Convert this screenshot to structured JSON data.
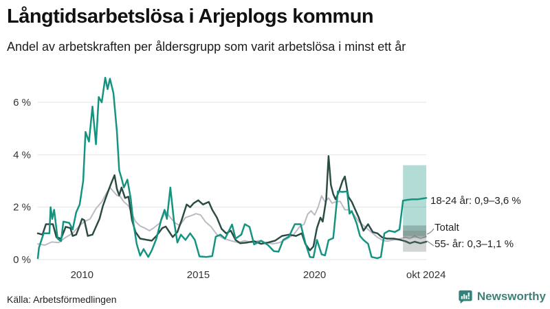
{
  "header": {
    "title": "Långtidsarbetslösa i Arjeplogs kommun",
    "subtitle": "Andel av arbetskraften per åldersgrupp som varit arbetslösa i minst ett år"
  },
  "footer": {
    "source": "Källa: Arbetsförmedlingen",
    "brand": "Newsworthy"
  },
  "colors": {
    "accent_teal": "#149380",
    "dark_series": "#2b4c44",
    "gray_series": "#bdb9c4",
    "gridline": "#e2e2e2",
    "tick_text": "#333333",
    "brand_teal": "#2e837a"
  },
  "chart_data": {
    "type": "line",
    "title": "Långtidsarbetslösa i Arjeplogs kommun",
    "subtitle": "Andel av arbetskraften per åldersgrupp som varit arbetslösa i minst ett år",
    "unit": "%",
    "grid": true,
    "legend_position": "right-annotations",
    "x_axis": {
      "range": [
        2008.1,
        2024.8
      ],
      "ticks": [
        {
          "label": "2010",
          "year": 2010
        },
        {
          "label": "2015",
          "year": 2015
        },
        {
          "label": "2020",
          "year": 2020
        },
        {
          "label": "okt 2024",
          "year": 2024.79
        }
      ]
    },
    "y_axis": {
      "range": [
        0,
        7
      ],
      "ticks": [
        {
          "label": "0 %",
          "value": 0
        },
        {
          "label": "2 %",
          "value": 2
        },
        {
          "label": "4 %",
          "value": 4
        },
        {
          "label": "6 %",
          "value": 6
        }
      ]
    },
    "series": [
      {
        "name": "Totalt",
        "color": "#bdb9c4",
        "stroke_width": 2,
        "points": [
          [
            2008.1,
            0.6
          ],
          [
            2008.4,
            0.55
          ],
          [
            2008.7,
            0.67
          ],
          [
            2009.0,
            0.65
          ],
          [
            2009.3,
            0.85
          ],
          [
            2009.6,
            1.0
          ],
          [
            2009.9,
            1.3
          ],
          [
            2010.1,
            1.45
          ],
          [
            2010.35,
            1.55
          ],
          [
            2010.6,
            1.95
          ],
          [
            2010.85,
            2.2
          ],
          [
            2011.0,
            2.45
          ],
          [
            2011.2,
            2.75
          ],
          [
            2011.35,
            2.6
          ],
          [
            2011.5,
            2.45
          ],
          [
            2011.65,
            2.4
          ],
          [
            2011.8,
            2.2
          ],
          [
            2012.0,
            2.05
          ],
          [
            2012.15,
            1.75
          ],
          [
            2012.3,
            1.45
          ],
          [
            2012.5,
            1.28
          ],
          [
            2012.7,
            1.2
          ],
          [
            2012.9,
            1.1
          ],
          [
            2013.1,
            1.22
          ],
          [
            2013.35,
            1.4
          ],
          [
            2013.6,
            1.83
          ],
          [
            2013.8,
            1.6
          ],
          [
            2014.0,
            1.4
          ],
          [
            2014.2,
            1.3
          ],
          [
            2014.45,
            1.6
          ],
          [
            2014.7,
            1.68
          ],
          [
            2014.9,
            1.75
          ],
          [
            2015.1,
            1.7
          ],
          [
            2015.3,
            1.45
          ],
          [
            2015.55,
            1.25
          ],
          [
            2015.8,
            0.95
          ],
          [
            2016.1,
            0.8
          ],
          [
            2016.4,
            0.72
          ],
          [
            2016.7,
            0.65
          ],
          [
            2017.0,
            0.72
          ],
          [
            2017.3,
            0.65
          ],
          [
            2017.6,
            0.72
          ],
          [
            2017.9,
            0.65
          ],
          [
            2018.2,
            0.6
          ],
          [
            2018.5,
            0.65
          ],
          [
            2018.8,
            0.78
          ],
          [
            2019.1,
            0.95
          ],
          [
            2019.35,
            1.25
          ],
          [
            2019.55,
            1.35
          ],
          [
            2019.7,
            1.73
          ],
          [
            2019.85,
            1.86
          ],
          [
            2020.0,
            1.7
          ],
          [
            2020.15,
            2.0
          ],
          [
            2020.3,
            2.43
          ],
          [
            2020.45,
            2.2
          ],
          [
            2020.6,
            2.35
          ],
          [
            2020.75,
            2.15
          ],
          [
            2020.9,
            2.2
          ],
          [
            2021.1,
            2.22
          ],
          [
            2021.3,
            1.9
          ],
          [
            2021.5,
            1.9
          ],
          [
            2021.7,
            1.7
          ],
          [
            2021.9,
            1.45
          ],
          [
            2022.1,
            1.3
          ],
          [
            2022.3,
            1.15
          ],
          [
            2022.5,
            1.0
          ],
          [
            2022.7,
            0.85
          ],
          [
            2022.9,
            0.75
          ],
          [
            2023.1,
            0.7
          ],
          [
            2023.4,
            0.75
          ],
          [
            2023.7,
            0.8
          ],
          [
            2023.9,
            0.85
          ],
          [
            2024.1,
            0.8
          ],
          [
            2024.3,
            0.9
          ],
          [
            2024.55,
            0.8
          ],
          [
            2024.8,
            0.88
          ]
        ]
      },
      {
        "name": "55- år",
        "color": "#2b4c44",
        "stroke_width": 2.5,
        "points": [
          [
            2008.1,
            1.0
          ],
          [
            2008.3,
            0.95
          ],
          [
            2008.45,
            1.35
          ],
          [
            2008.75,
            1.35
          ],
          [
            2008.9,
            0.85
          ],
          [
            2009.1,
            0.8
          ],
          [
            2009.3,
            1.25
          ],
          [
            2009.5,
            1.2
          ],
          [
            2009.6,
            0.9
          ],
          [
            2009.75,
            0.95
          ],
          [
            2009.9,
            1.3
          ],
          [
            2010.0,
            1.55
          ],
          [
            2010.1,
            1.5
          ],
          [
            2010.25,
            0.9
          ],
          [
            2010.45,
            0.95
          ],
          [
            2010.6,
            1.25
          ],
          [
            2010.75,
            1.55
          ],
          [
            2010.9,
            2.05
          ],
          [
            2011.1,
            2.55
          ],
          [
            2011.25,
            2.9
          ],
          [
            2011.4,
            3.22
          ],
          [
            2011.5,
            2.7
          ],
          [
            2011.6,
            2.45
          ],
          [
            2011.7,
            2.75
          ],
          [
            2011.85,
            2.35
          ],
          [
            2012.0,
            2.4
          ],
          [
            2012.15,
            1.5
          ],
          [
            2012.3,
            1.05
          ],
          [
            2012.5,
            0.8
          ],
          [
            2012.8,
            0.75
          ],
          [
            2013.0,
            0.72
          ],
          [
            2013.2,
            0.9
          ],
          [
            2013.45,
            1.2
          ],
          [
            2013.6,
            1.26
          ],
          [
            2013.9,
            0.86
          ],
          [
            2014.1,
            1.05
          ],
          [
            2014.3,
            1.55
          ],
          [
            2014.5,
            2.1
          ],
          [
            2014.65,
            2.0
          ],
          [
            2014.8,
            2.15
          ],
          [
            2015.0,
            2.26
          ],
          [
            2015.2,
            2.1
          ],
          [
            2015.45,
            2.2
          ],
          [
            2015.6,
            1.9
          ],
          [
            2015.8,
            1.6
          ],
          [
            2016.0,
            1.17
          ],
          [
            2016.2,
            1.0
          ],
          [
            2016.4,
            1.1
          ],
          [
            2016.6,
            0.75
          ],
          [
            2016.8,
            0.62
          ],
          [
            2017.1,
            0.65
          ],
          [
            2017.4,
            0.7
          ],
          [
            2017.7,
            0.6
          ],
          [
            2018.0,
            0.65
          ],
          [
            2018.3,
            0.72
          ],
          [
            2018.6,
            0.9
          ],
          [
            2018.9,
            0.95
          ],
          [
            2019.2,
            0.9
          ],
          [
            2019.45,
            1.0
          ],
          [
            2019.6,
            0.6
          ],
          [
            2019.8,
            0.35
          ],
          [
            2019.95,
            0.5
          ],
          [
            2020.1,
            1.2
          ],
          [
            2020.25,
            1.6
          ],
          [
            2020.35,
            1.45
          ],
          [
            2020.5,
            2.3
          ],
          [
            2020.6,
            3.95
          ],
          [
            2020.7,
            2.85
          ],
          [
            2020.8,
            2.5
          ],
          [
            2020.9,
            2.3
          ],
          [
            2021.05,
            2.6
          ],
          [
            2021.2,
            3.0
          ],
          [
            2021.3,
            3.17
          ],
          [
            2021.45,
            2.4
          ],
          [
            2021.6,
            2.2
          ],
          [
            2021.75,
            1.9
          ],
          [
            2021.9,
            1.6
          ],
          [
            2022.1,
            1.1
          ],
          [
            2022.3,
            1.35
          ],
          [
            2022.5,
            1.05
          ],
          [
            2022.7,
            1.0
          ],
          [
            2022.9,
            0.85
          ],
          [
            2023.1,
            0.8
          ],
          [
            2023.4,
            0.8
          ],
          [
            2023.7,
            0.75
          ],
          [
            2023.9,
            0.7
          ],
          [
            2024.1,
            0.62
          ],
          [
            2024.3,
            0.68
          ],
          [
            2024.55,
            0.62
          ],
          [
            2024.8,
            0.68
          ]
        ]
      },
      {
        "name": "18-24 år",
        "color": "#149380",
        "stroke_width": 2.5,
        "points": [
          [
            2008.1,
            0.05
          ],
          [
            2008.15,
            0.45
          ],
          [
            2008.35,
            1.0
          ],
          [
            2008.6,
            1.0
          ],
          [
            2008.65,
            2.0
          ],
          [
            2008.72,
            1.55
          ],
          [
            2008.8,
            1.9
          ],
          [
            2008.95,
            0.8
          ],
          [
            2009.1,
            0.7
          ],
          [
            2009.2,
            1.45
          ],
          [
            2009.45,
            1.4
          ],
          [
            2009.6,
            1.15
          ],
          [
            2009.75,
            1.8
          ],
          [
            2009.9,
            2.1
          ],
          [
            2010.05,
            3.0
          ],
          [
            2010.15,
            4.87
          ],
          [
            2010.3,
            4.5
          ],
          [
            2010.45,
            5.84
          ],
          [
            2010.6,
            4.4
          ],
          [
            2010.72,
            6.2
          ],
          [
            2010.85,
            6.0
          ],
          [
            2011.0,
            6.94
          ],
          [
            2011.1,
            6.5
          ],
          [
            2011.2,
            6.9
          ],
          [
            2011.35,
            6.35
          ],
          [
            2011.5,
            4.9
          ],
          [
            2011.6,
            3.4
          ],
          [
            2011.7,
            3.1
          ],
          [
            2011.8,
            2.75
          ],
          [
            2011.95,
            3.05
          ],
          [
            2012.1,
            2.3
          ],
          [
            2012.2,
            1.45
          ],
          [
            2012.35,
            0.6
          ],
          [
            2012.5,
            0.15
          ],
          [
            2012.65,
            0.4
          ],
          [
            2012.85,
            0.1
          ],
          [
            2013.0,
            0.35
          ],
          [
            2013.2,
            0.8
          ],
          [
            2013.4,
            1.5
          ],
          [
            2013.55,
            1.9
          ],
          [
            2013.65,
            1.55
          ],
          [
            2013.8,
            2.75
          ],
          [
            2013.95,
            1.5
          ],
          [
            2014.1,
            0.65
          ],
          [
            2014.25,
            0.95
          ],
          [
            2014.45,
            0.75
          ],
          [
            2014.65,
            1.0
          ],
          [
            2014.85,
            0.75
          ],
          [
            2015.05,
            0.12
          ],
          [
            2015.35,
            0.1
          ],
          [
            2015.6,
            0.13
          ],
          [
            2015.75,
            0.87
          ],
          [
            2015.95,
            0.95
          ],
          [
            2016.15,
            0.8
          ],
          [
            2016.45,
            1.34
          ],
          [
            2016.6,
            0.8
          ],
          [
            2016.85,
            0.95
          ],
          [
            2017.0,
            1.35
          ],
          [
            2017.2,
            1.25
          ],
          [
            2017.4,
            0.58
          ],
          [
            2017.7,
            0.72
          ],
          [
            2018.0,
            0.55
          ],
          [
            2018.25,
            0.32
          ],
          [
            2018.45,
            0.3
          ],
          [
            2018.65,
            0.75
          ],
          [
            2018.9,
            0.88
          ],
          [
            2019.15,
            1.35
          ],
          [
            2019.4,
            1.35
          ],
          [
            2019.6,
            0.64
          ],
          [
            2019.8,
            0.1
          ],
          [
            2019.95,
            0.08
          ],
          [
            2020.1,
            0.75
          ],
          [
            2020.3,
            0.2
          ],
          [
            2020.45,
            0.16
          ],
          [
            2020.6,
            0.74
          ],
          [
            2020.8,
            0.82
          ],
          [
            2021.0,
            2.6
          ],
          [
            2021.2,
            2.58
          ],
          [
            2021.4,
            2.6
          ],
          [
            2021.5,
            1.75
          ],
          [
            2021.6,
            1.85
          ],
          [
            2021.8,
            1.4
          ],
          [
            2021.95,
            0.9
          ],
          [
            2022.1,
            0.75
          ],
          [
            2022.3,
            0.6
          ],
          [
            2022.45,
            0.1
          ],
          [
            2022.7,
            0.05
          ],
          [
            2022.85,
            0.1
          ],
          [
            2023.0,
            1.0
          ],
          [
            2023.2,
            1.1
          ],
          [
            2023.45,
            1.05
          ],
          [
            2023.65,
            1.15
          ],
          [
            2023.8,
            2.25
          ],
          [
            2024.0,
            2.28
          ],
          [
            2024.2,
            2.3
          ],
          [
            2024.45,
            2.3
          ],
          [
            2024.65,
            2.33
          ],
          [
            2024.8,
            2.35
          ]
        ]
      }
    ],
    "uncertainty_bands": [
      {
        "series": "18-24 år",
        "from": 2023.8,
        "to": 2024.8,
        "low": 0.9,
        "high": 3.6,
        "color": "rgba(20,147,128,0.32)"
      },
      {
        "series": "Totalt",
        "from": 2023.8,
        "to": 2024.8,
        "low": 0.82,
        "high": 1.3,
        "color": "rgba(70,85,78,0.30)"
      },
      {
        "series": "55- år",
        "from": 2023.8,
        "to": 2024.8,
        "low": 0.3,
        "high": 1.1,
        "color": "rgba(110,120,115,0.32)"
      }
    ],
    "annotations": [
      {
        "series": "18-24 år",
        "label": "18-24 år: 0,9–3,6 %"
      },
      {
        "series": "Totalt",
        "label": "Totalt"
      },
      {
        "series": "55- år",
        "label": "55- år: 0,3–1,1 %"
      }
    ]
  }
}
